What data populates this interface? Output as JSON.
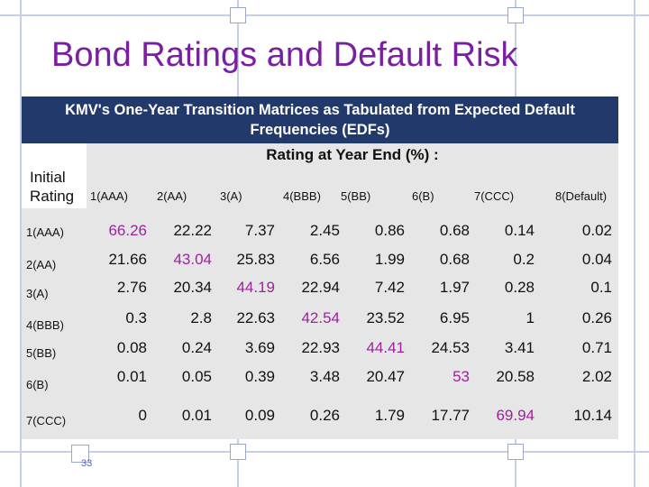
{
  "slide": {
    "title": "Bond Ratings and Default Risk",
    "page_number": "33",
    "colors": {
      "title": "#7a1fa2",
      "band": "#21396b",
      "diagonal": "#a020a0",
      "accent_lines": "#c7cfe6"
    }
  },
  "table": {
    "caption_line1": "KMV's One-Year Transition Matrices as Tabulated from Expected Default",
    "caption_line2": "Frequencies (EDFs)",
    "header": "Rating at Year End (%) :",
    "initial_line1": "Initial",
    "initial_line2": "Rating",
    "columns": [
      "1(AAA)",
      "2(AA)",
      "3(A)",
      "4(BBB)",
      "5(BB)",
      "6(B)",
      "7(CCC)",
      "8(Default)"
    ],
    "rows": [
      {
        "label": "1(AAA)",
        "values": [
          "66.26",
          "22.22",
          "7.37",
          "2.45",
          "0.86",
          "0.68",
          "0.14",
          "0.02"
        ]
      },
      {
        "label": "2(AA)",
        "values": [
          "21.66",
          "43.04",
          "25.83",
          "6.56",
          "1.99",
          "0.68",
          "0.2",
          "0.04"
        ]
      },
      {
        "label": "3(A)",
        "values": [
          "2.76",
          "20.34",
          "44.19",
          "22.94",
          "7.42",
          "1.97",
          "0.28",
          "0.1"
        ]
      },
      {
        "label": "4(BBB)",
        "values": [
          "0.3",
          "2.8",
          "22.63",
          "42.54",
          "23.52",
          "6.95",
          "1",
          "0.26"
        ]
      },
      {
        "label": "5(BB)",
        "values": [
          "0.08",
          "0.24",
          "3.69",
          "22.93",
          "44.41",
          "24.53",
          "3.41",
          "0.71"
        ]
      },
      {
        "label": "6(B)",
        "values": [
          "0.01",
          "0.05",
          "0.39",
          "3.48",
          "20.47",
          "53",
          "20.58",
          "2.02"
        ]
      },
      {
        "label": "7(CCC)",
        "values": [
          "0",
          "0.01",
          "0.09",
          "0.26",
          "1.79",
          "17.77",
          "69.94",
          "10.14"
        ]
      }
    ]
  }
}
